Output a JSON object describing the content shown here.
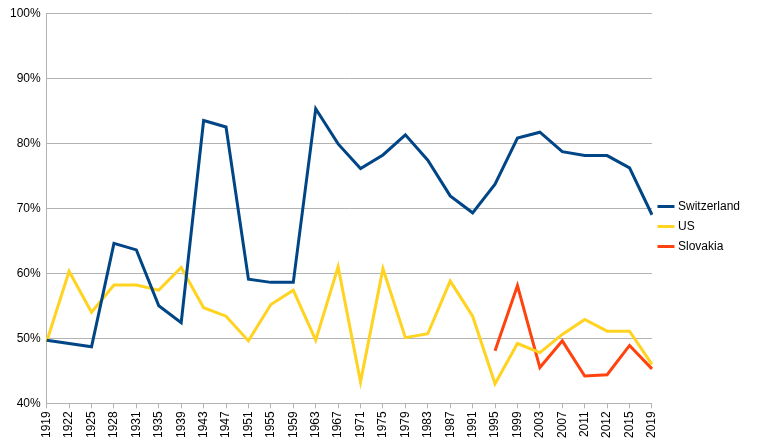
{
  "chart_data": {
    "type": "line",
    "categories": [
      "1919",
      "1922",
      "1925",
      "1928",
      "1931",
      "1935",
      "1939",
      "1943",
      "1947",
      "1951",
      "1955",
      "1959",
      "1963",
      "1967",
      "1971",
      "1975",
      "1979",
      "1983",
      "1987",
      "1991",
      "1995",
      "1999",
      "2003",
      "2007",
      "2011",
      "2012",
      "2015",
      "2019"
    ],
    "series": [
      {
        "name": "Switzerland",
        "color": "#004586",
        "values": [
          49.7,
          49.2,
          48.7,
          64.6,
          63.6,
          55.0,
          52.4,
          83.5,
          82.5,
          59.1,
          58.6,
          58.6,
          85.3,
          79.9,
          76.1,
          78.2,
          81.3,
          77.4,
          71.9,
          69.3,
          73.7,
          80.8,
          81.7,
          78.7,
          78.1,
          78.1,
          76.2,
          69.0
        ]
      },
      {
        "name": "US",
        "color": "#ffd320",
        "values": [
          49.5,
          60.3,
          54.0,
          58.2,
          58.2,
          57.4,
          60.9,
          54.7,
          53.4,
          49.6,
          55.2,
          57.4,
          49.7,
          61.0,
          43.3,
          60.7,
          50.1,
          50.7,
          58.8,
          53.4,
          43.0,
          49.2,
          47.8,
          50.6,
          52.9,
          51.1,
          51.1,
          46.0
        ]
      },
      {
        "name": "Slovakia",
        "color": "#ff420e",
        "values": [
          null,
          null,
          null,
          null,
          null,
          null,
          null,
          null,
          null,
          null,
          null,
          null,
          null,
          null,
          null,
          null,
          null,
          null,
          null,
          null,
          48.1,
          58.1,
          45.5,
          49.6,
          44.2,
          44.4,
          48.9,
          45.3
        ]
      }
    ],
    "ylim": [
      40,
      100
    ],
    "yticks": [
      {
        "value": 40,
        "label": "40%"
      },
      {
        "value": 50,
        "label": "50%"
      },
      {
        "value": 60,
        "label": "60%"
      },
      {
        "value": 70,
        "label": "70%"
      },
      {
        "value": 80,
        "label": "80%"
      },
      {
        "value": 90,
        "label": "90%"
      },
      {
        "value": 100,
        "label": "100%"
      }
    ],
    "grid": true,
    "legend": "right"
  }
}
